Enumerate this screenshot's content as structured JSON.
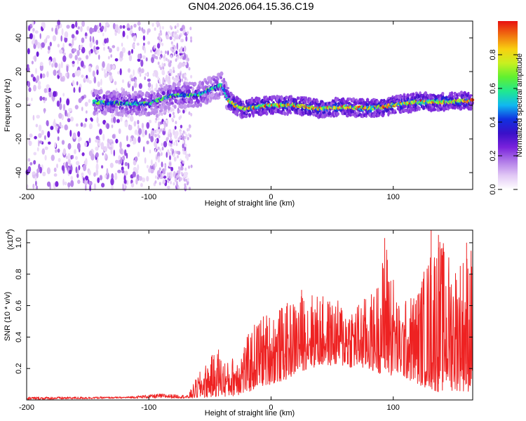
{
  "title": "GN04.2026.064.15.36.C19",
  "colors": {
    "snr_line": "#ee2222",
    "axis": "#000000",
    "background": "#ffffff"
  },
  "chart_data": [
    {
      "type": "heatmap",
      "name": "spectrogram",
      "xlabel": "Height of straight line (km)",
      "ylabel": "Frequency (Hz)",
      "xlim": [
        -200,
        165
      ],
      "ylim": [
        -50,
        50
      ],
      "xticks": [
        -200,
        -100,
        0,
        100
      ],
      "yticks": [
        -40,
        -20,
        0,
        20,
        40
      ],
      "colorbar": {
        "label": "Normalized spectral amplitude",
        "range": [
          0,
          1
        ],
        "ticks": [
          0,
          0.2,
          0.4,
          0.6,
          0.8
        ],
        "tick_labels": [
          "0.0",
          "0.2",
          "0.4",
          "0.6",
          "0.8"
        ],
        "colormap": [
          "#ffffff",
          "#e2c8f5",
          "#b07ae8",
          "#7a22dc",
          "#3a10c8",
          "#1030e0",
          "#10b8f0",
          "#20e890",
          "#60f030",
          "#c8f020",
          "#f8d010",
          "#f07010",
          "#e81010"
        ]
      },
      "features": {
        "noise_region_x": [
          -200,
          -68
        ],
        "scattered_noise_x": [
          -95,
          -65
        ],
        "signal_track": [
          {
            "x": -145,
            "y": 2
          },
          {
            "x": -120,
            "y": 1
          },
          {
            "x": -100,
            "y": 1
          },
          {
            "x": -80,
            "y": 6
          },
          {
            "x": -60,
            "y": 6
          },
          {
            "x": -48,
            "y": 10
          },
          {
            "x": -40,
            "y": 12
          },
          {
            "x": -35,
            "y": 3
          },
          {
            "x": -25,
            "y": -2
          },
          {
            "x": 0,
            "y": 0
          },
          {
            "x": 20,
            "y": 0
          },
          {
            "x": 40,
            "y": -2
          },
          {
            "x": 60,
            "y": -1
          },
          {
            "x": 80,
            "y": -2
          },
          {
            "x": 100,
            "y": 0
          },
          {
            "x": 120,
            "y": 2
          },
          {
            "x": 145,
            "y": 2
          },
          {
            "x": 165,
            "y": 3
          }
        ]
      }
    },
    {
      "type": "line",
      "name": "snr",
      "xlabel": "Height of straight line (km)",
      "ylabel": "SNR (10 * v/v)",
      "y_multiplier": "(x10",
      "y_multiplier_exp": "4",
      "xlim": [
        -200,
        165
      ],
      "ylim": [
        0,
        1.08
      ],
      "xticks": [
        -200,
        -100,
        0,
        100
      ],
      "yticks": [
        0.2,
        0.4,
        0.6,
        0.8,
        1.0
      ],
      "ytick_labels": [
        "0.2",
        "0.4",
        "0.6",
        "0.8",
        "1.0"
      ],
      "envelope": [
        {
          "x": -200,
          "low": 0.0,
          "high": 0.02
        },
        {
          "x": -120,
          "low": 0.01,
          "high": 0.02
        },
        {
          "x": -90,
          "low": 0.01,
          "high": 0.04
        },
        {
          "x": -68,
          "low": 0.01,
          "high": 0.03
        },
        {
          "x": -60,
          "low": 0.01,
          "high": 0.16
        },
        {
          "x": -45,
          "low": 0.02,
          "high": 0.32
        },
        {
          "x": -35,
          "low": 0.02,
          "high": 0.24
        },
        {
          "x": -20,
          "low": 0.04,
          "high": 0.4
        },
        {
          "x": -10,
          "low": 0.08,
          "high": 0.54
        },
        {
          "x": 10,
          "low": 0.12,
          "high": 0.6
        },
        {
          "x": 30,
          "low": 0.2,
          "high": 0.7
        },
        {
          "x": 50,
          "low": 0.22,
          "high": 0.64
        },
        {
          "x": 70,
          "low": 0.2,
          "high": 0.62
        },
        {
          "x": 85,
          "low": 0.18,
          "high": 0.7
        },
        {
          "x": 95,
          "low": 0.15,
          "high": 1.03
        },
        {
          "x": 105,
          "low": 0.15,
          "high": 0.6
        },
        {
          "x": 120,
          "low": 0.1,
          "high": 0.72
        },
        {
          "x": 135,
          "low": 0.05,
          "high": 1.08
        },
        {
          "x": 150,
          "low": 0.06,
          "high": 0.9
        },
        {
          "x": 165,
          "low": 0.05,
          "high": 1.0
        }
      ],
      "spikes": [
        {
          "x": -43,
          "y": 0.32
        },
        {
          "x": 25,
          "y": 0.7
        },
        {
          "x": 93,
          "y": 1.03
        },
        {
          "x": 131,
          "y": 1.08
        },
        {
          "x": 137,
          "y": 1.05
        },
        {
          "x": 160,
          "y": 1.0
        }
      ]
    }
  ]
}
